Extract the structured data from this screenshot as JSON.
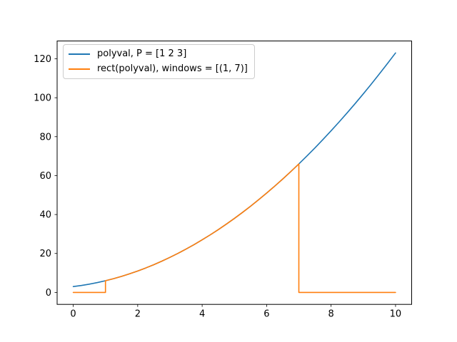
{
  "figure": {
    "background": "#ffffff"
  },
  "legend": {
    "position": "upper-left",
    "entries": [
      {
        "label": "polyval, P = [1 2 3]",
        "color": "#1f77b4"
      },
      {
        "label": "rect(polyval), windows = [(1, 7)]",
        "color": "#ff7f0e"
      }
    ]
  },
  "chart_data": {
    "type": "line",
    "title": "",
    "xlabel": "",
    "ylabel": "",
    "xlim": [
      -0.5,
      10.5
    ],
    "ylim": [
      -6.15,
      129.15
    ],
    "xticks": [
      0,
      2,
      4,
      6,
      8,
      10
    ],
    "yticks": [
      0,
      20,
      40,
      60,
      80,
      100,
      120
    ],
    "grid": false,
    "legend_position": "upper-left",
    "polynomial_coefficients": [
      1,
      2,
      3
    ],
    "rect_windows": [
      [
        1,
        7
      ]
    ],
    "series": [
      {
        "name": "polyval, P = [1 2 3]",
        "color": "#1f77b4",
        "x": [
          0,
          0.25,
          0.5,
          0.75,
          1,
          1.25,
          1.5,
          1.75,
          2,
          2.25,
          2.5,
          2.75,
          3,
          3.25,
          3.5,
          3.75,
          4,
          4.25,
          4.5,
          4.75,
          5,
          5.25,
          5.5,
          5.75,
          6,
          6.25,
          6.5,
          6.75,
          7,
          7.25,
          7.5,
          7.75,
          8,
          8.25,
          8.5,
          8.75,
          9,
          9.25,
          9.5,
          9.75,
          10
        ],
        "y": [
          3,
          3.5625,
          4.25,
          5.0625,
          6,
          7.0625,
          8.25,
          9.5625,
          11,
          12.5625,
          14.25,
          16.0625,
          18,
          20.0625,
          22.25,
          24.5625,
          27,
          29.5625,
          32.25,
          35.0625,
          38,
          41.0625,
          44.25,
          47.5625,
          51,
          54.5625,
          58.25,
          62.0625,
          66,
          70.0625,
          74.25,
          78.5625,
          83,
          87.5625,
          92.25,
          97.0625,
          102,
          107.0625,
          112.25,
          117.5625,
          123
        ]
      },
      {
        "name": "rect(polyval), windows = [(1, 7)]",
        "color": "#ff7f0e",
        "x": [
          0,
          1,
          1,
          1.25,
          1.5,
          1.75,
          2,
          2.25,
          2.5,
          2.75,
          3,
          3.25,
          3.5,
          3.75,
          4,
          4.25,
          4.5,
          4.75,
          5,
          5.25,
          5.5,
          5.75,
          6,
          6.25,
          6.5,
          6.75,
          7,
          7,
          10
        ],
        "y": [
          0,
          0,
          6,
          7.0625,
          8.25,
          9.5625,
          11,
          12.5625,
          14.25,
          16.0625,
          18,
          20.0625,
          22.25,
          24.5625,
          27,
          29.5625,
          32.25,
          35.0625,
          38,
          41.0625,
          44.25,
          47.5625,
          51,
          54.5625,
          58.25,
          62.0625,
          66,
          0,
          0
        ]
      }
    ]
  }
}
